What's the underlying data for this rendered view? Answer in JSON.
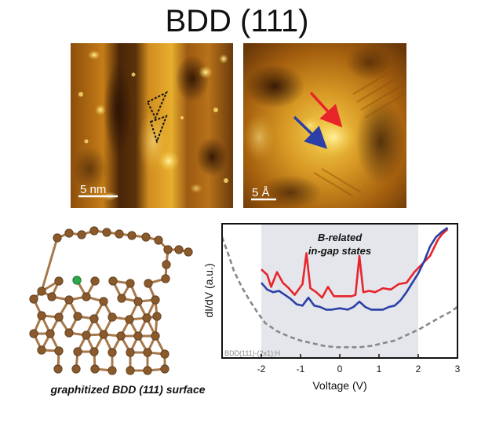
{
  "figure": {
    "title": "BDD (111)",
    "stm_left": {
      "scale_label": "5 nm"
    },
    "stm_right": {
      "scale_label": "5 Å"
    },
    "structure_caption": "graphitized BDD (111) surface"
  },
  "colors": {
    "stm_dark": "#3a1c06",
    "stm_mid": "#a8620f",
    "stm_bright": "#f2c238",
    "stm_highlight": "#ffeb8a",
    "atom_brown": "#8a5a2c",
    "atom_boron": "#2aa84a",
    "bond_brown": "#a6784a",
    "red_curve": "#e8242b",
    "blue_curve": "#2b3fa6",
    "ref_curve": "#888888",
    "gap_shade": "#e4e6ec"
  },
  "chart_data": {
    "type": "line",
    "xlabel": "Voltage (V)",
    "ylabel": "dI/dV (a.u.)",
    "xlim": [
      -3,
      3
    ],
    "ylim": [
      0,
      10
    ],
    "xticks": [
      -2,
      -1,
      0,
      1,
      2,
      3
    ],
    "shaded_region": {
      "x": [
        -2,
        2
      ],
      "label_line1": "B-related",
      "label_line2": "in-gap states"
    },
    "annotation": "BDD(111)-(2x1):H",
    "series": [
      {
        "color": "red",
        "x": [
          -2.0,
          -1.85,
          -1.75,
          -1.6,
          -1.45,
          -1.3,
          -1.15,
          -0.95,
          -0.85,
          -0.75,
          -0.6,
          -0.45,
          -0.3,
          -0.15,
          0.0,
          0.15,
          0.3,
          0.4,
          0.5,
          0.6,
          0.75,
          0.9,
          1.1,
          1.3,
          1.5,
          1.7,
          1.9,
          2.1,
          2.3,
          2.5,
          2.6,
          2.75
        ],
        "y": [
          6.6,
          6.2,
          5.3,
          6.4,
          5.6,
          5.2,
          4.7,
          5.5,
          7.8,
          5.2,
          4.9,
          4.5,
          5.3,
          4.6,
          4.6,
          4.6,
          4.6,
          4.7,
          7.6,
          4.9,
          5.0,
          4.9,
          5.2,
          5.1,
          5.5,
          5.6,
          6.4,
          7.0,
          7.6,
          8.8,
          9.2,
          9.6
        ]
      },
      {
        "color": "blue",
        "x": [
          -2.0,
          -1.85,
          -1.7,
          -1.55,
          -1.4,
          -1.25,
          -1.1,
          -0.95,
          -0.8,
          -0.65,
          -0.5,
          -0.35,
          -0.2,
          0.0,
          0.2,
          0.35,
          0.5,
          0.65,
          0.8,
          0.95,
          1.1,
          1.25,
          1.4,
          1.55,
          1.7,
          1.85,
          2.0,
          2.15,
          2.3,
          2.45,
          2.6,
          2.75
        ],
        "y": [
          5.6,
          5.1,
          4.9,
          5.0,
          4.7,
          4.4,
          4.0,
          3.9,
          4.5,
          3.9,
          3.8,
          3.6,
          3.6,
          3.7,
          3.6,
          3.8,
          4.2,
          3.8,
          3.6,
          3.6,
          3.6,
          3.8,
          3.9,
          4.3,
          4.9,
          5.6,
          6.3,
          7.2,
          8.3,
          9.0,
          9.4,
          9.7
        ]
      },
      {
        "color": "gray dashed",
        "x": [
          -3.0,
          -2.85,
          -2.7,
          -2.5,
          -2.3,
          -2.1,
          -1.9,
          -1.6,
          -1.3,
          -1.0,
          -0.7,
          -0.4,
          -0.1,
          0.2,
          0.5,
          0.8,
          1.1,
          1.4,
          1.7,
          2.0,
          2.3,
          2.6,
          2.8,
          3.0
        ],
        "y": [
          9.0,
          7.8,
          6.5,
          5.3,
          4.3,
          3.4,
          2.6,
          2.0,
          1.6,
          1.3,
          1.1,
          0.9,
          0.8,
          0.8,
          0.8,
          0.9,
          1.1,
          1.3,
          1.7,
          2.1,
          2.6,
          3.1,
          3.4,
          3.8
        ]
      }
    ]
  }
}
